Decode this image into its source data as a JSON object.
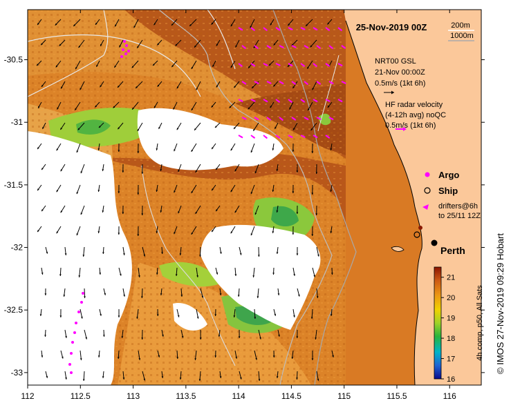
{
  "title": "25-Nov-2019 00Z",
  "credit": "© IMOS 27-Nov-2019 09:29 Hobart",
  "isobaths": [
    "200m",
    "1000m"
  ],
  "axes": {
    "x_ticks": [
      "112",
      "112.5",
      "113",
      "113.5",
      "114",
      "114.5",
      "115",
      "115.5",
      "116"
    ],
    "y_ticks": [
      "-30.5",
      "-31",
      "-31.5",
      "-32",
      "-32.5",
      "-33"
    ],
    "x_range": [
      112,
      116.3
    ],
    "y_range": [
      -33.1,
      -30.1
    ]
  },
  "legend": {
    "model_lines": [
      "NRT00 GSL",
      "21-Nov 00:00Z",
      "0.5m/s (1kt 6h)"
    ],
    "radar_lines": [
      "HF radar velocity",
      "(4-12h avg) noQC",
      "0.5m/s (1kt 6h)"
    ],
    "argo": "Argo",
    "ship": "Ship",
    "drifters_lines": [
      "drifters@6h",
      "to 25/11 12Z"
    ]
  },
  "place": "Perth",
  "colorbar": {
    "ticks": [
      "21",
      "20",
      "19",
      "18",
      "17",
      "16"
    ],
    "range": [
      16,
      21.5
    ],
    "label": "4h comp, p50, All Sats"
  },
  "colors": {
    "land": "#fbc89a",
    "radar_arrow": "#ff00ff",
    "argo": "#ff00ff",
    "ship_dot": "#8b1a00"
  }
}
